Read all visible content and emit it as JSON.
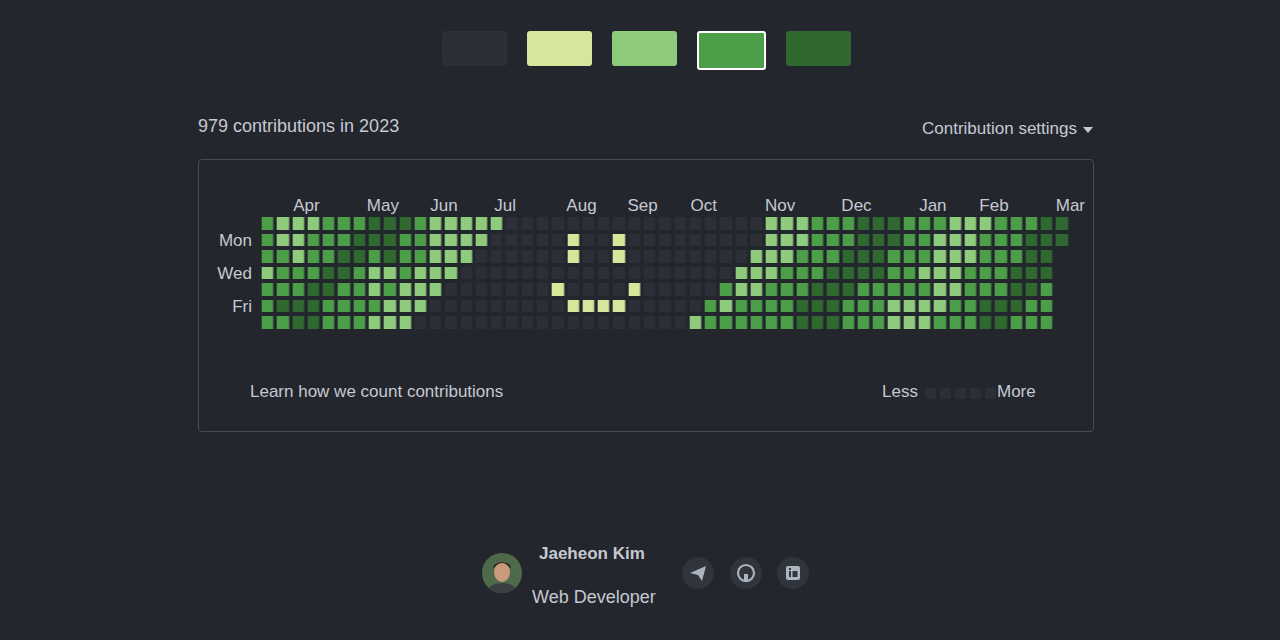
{
  "chart_data": {
    "type": "heatmap",
    "title": "979 contributions in 2023",
    "categories": [
      null,
      null,
      null,
      "Apr",
      null,
      null,
      null,
      null,
      "May",
      null,
      null,
      null,
      "Jun",
      null,
      null,
      null,
      "Jul",
      null,
      null,
      null,
      null,
      "Aug",
      null,
      null,
      null,
      "Sep",
      null,
      null,
      null,
      "Oct",
      null,
      null,
      null,
      null,
      "Nov",
      null,
      null,
      null,
      null,
      "Dec",
      null,
      null,
      null,
      null,
      "Jan",
      null,
      null,
      null,
      "Feb",
      null,
      null,
      null,
      null,
      "Mar"
    ],
    "rows": [
      null,
      "Mon",
      null,
      "Wed",
      null,
      "Fri",
      null
    ],
    "colors": [
      "#2c2f37",
      "#d6e69a",
      "#8ecb7c",
      "#4d9e48",
      "#2f6930"
    ],
    "cells": [
      [
        3,
        2,
        2,
        2,
        3,
        3,
        3,
        4,
        4,
        4,
        3,
        2,
        2,
        2,
        2,
        2,
        0,
        0,
        0,
        0,
        0,
        0,
        0,
        0,
        0,
        0,
        0,
        0,
        0,
        0,
        0,
        0,
        0,
        2,
        2,
        2,
        3,
        3,
        3,
        4,
        4,
        4,
        3,
        3,
        3,
        2,
        2,
        2,
        3,
        3,
        3,
        4,
        4
      ],
      [
        3,
        2,
        2,
        3,
        3,
        3,
        4,
        4,
        4,
        3,
        3,
        2,
        2,
        2,
        2,
        0,
        0,
        0,
        0,
        0,
        1,
        0,
        0,
        1,
        0,
        0,
        0,
        0,
        0,
        0,
        0,
        0,
        0,
        2,
        2,
        2,
        3,
        3,
        3,
        4,
        4,
        4,
        3,
        3,
        2,
        2,
        2,
        3,
        3,
        3,
        4,
        4,
        4
      ],
      [
        3,
        3,
        2,
        3,
        3,
        4,
        4,
        3,
        4,
        3,
        3,
        2,
        2,
        2,
        0,
        0,
        0,
        0,
        0,
        0,
        1,
        0,
        0,
        1,
        0,
        0,
        0,
        0,
        0,
        0,
        0,
        0,
        2,
        2,
        2,
        3,
        3,
        3,
        4,
        4,
        4,
        3,
        3,
        3,
        2,
        2,
        2,
        3,
        3,
        3,
        4,
        4,
        null
      ],
      [
        2,
        3,
        3,
        3,
        4,
        4,
        3,
        2,
        2,
        3,
        2,
        2,
        2,
        0,
        0,
        0,
        0,
        0,
        0,
        0,
        0,
        0,
        0,
        0,
        0,
        0,
        0,
        0,
        0,
        0,
        0,
        2,
        2,
        2,
        3,
        3,
        3,
        4,
        4,
        4,
        4,
        3,
        3,
        2,
        2,
        2,
        3,
        3,
        3,
        4,
        4,
        4,
        null
      ],
      [
        3,
        3,
        3,
        4,
        4,
        3,
        3,
        2,
        3,
        2,
        2,
        2,
        0,
        0,
        0,
        0,
        0,
        0,
        0,
        1,
        0,
        0,
        0,
        0,
        1,
        0,
        0,
        0,
        0,
        0,
        3,
        2,
        2,
        3,
        3,
        3,
        4,
        4,
        4,
        3,
        3,
        3,
        3,
        3,
        2,
        2,
        3,
        3,
        3,
        4,
        4,
        3,
        null
      ],
      [
        3,
        4,
        4,
        4,
        3,
        3,
        3,
        3,
        2,
        2,
        2,
        0,
        0,
        0,
        0,
        0,
        0,
        0,
        0,
        0,
        1,
        1,
        1,
        1,
        0,
        0,
        0,
        0,
        0,
        3,
        2,
        3,
        3,
        3,
        3,
        4,
        4,
        4,
        3,
        3,
        3,
        2,
        2,
        2,
        2,
        3,
        3,
        4,
        4,
        4,
        3,
        3,
        null
      ],
      [
        3,
        3,
        4,
        4,
        3,
        3,
        3,
        2,
        2,
        2,
        0,
        0,
        0,
        0,
        0,
        0,
        0,
        0,
        0,
        0,
        0,
        0,
        0,
        0,
        0,
        0,
        0,
        0,
        2,
        3,
        3,
        3,
        3,
        3,
        3,
        4,
        4,
        4,
        3,
        3,
        3,
        2,
        2,
        2,
        3,
        3,
        3,
        4,
        4,
        3,
        3,
        3,
        null
      ]
    ]
  },
  "page": {
    "selected_swatch": 3,
    "settings_label": "Contribution settings",
    "footnote": "Learn how we count contributions",
    "legend_less": "Less",
    "legend_more": "More",
    "author": {
      "name": "Jaeheon Kim",
      "role": "Web Developer"
    }
  }
}
